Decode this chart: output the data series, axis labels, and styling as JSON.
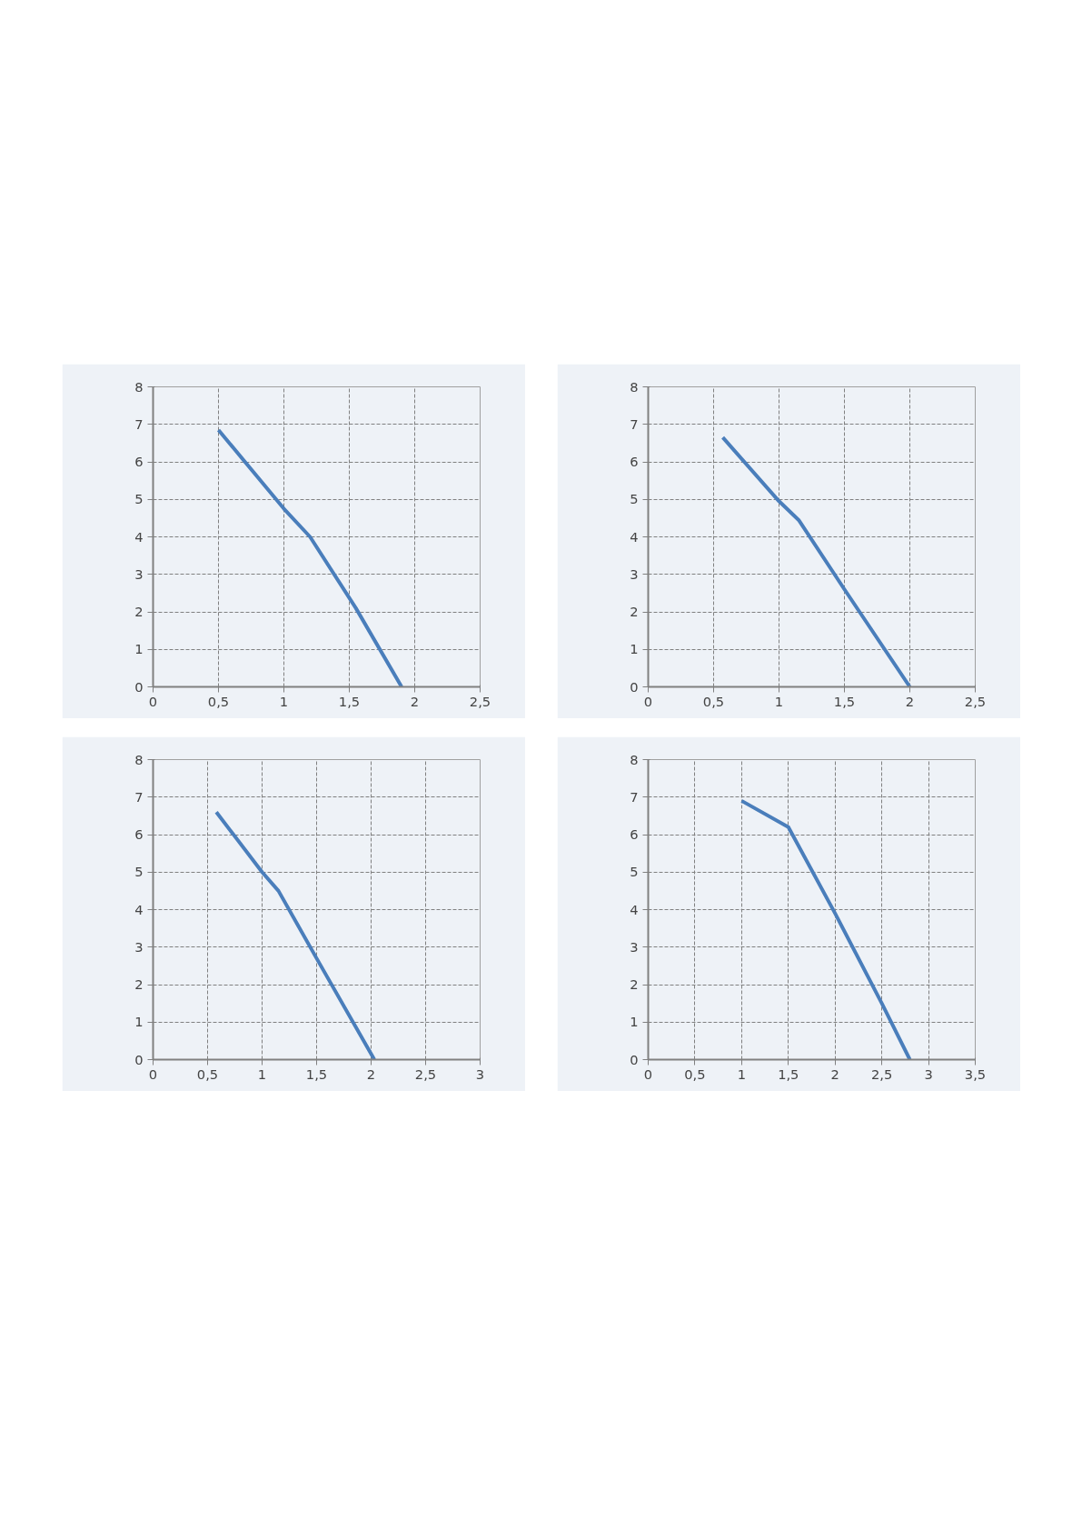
{
  "chart_data": [
    {
      "type": "line",
      "x": [
        0.5,
        1.0,
        1.2,
        1.55,
        1.9
      ],
      "series": [
        {
          "color": "#4a7ebb",
          "values": [
            6.85,
            4.75,
            4.0,
            2.1,
            0
          ]
        }
      ],
      "xlim": [
        0,
        2.5
      ],
      "ylim": [
        0,
        8
      ],
      "xticks": [
        0,
        {
          "value": 0.5,
          "label": "0,5"
        },
        1,
        {
          "value": 1.5,
          "label": "1,5"
        },
        2,
        {
          "value": 2.5,
          "label": "2,5"
        }
      ],
      "yticks": [
        0,
        1,
        2,
        3,
        4,
        5,
        6,
        7,
        8
      ],
      "grid": true
    },
    {
      "type": "line",
      "x": [
        0.57,
        1.0,
        1.15,
        1.5,
        2.0
      ],
      "series": [
        {
          "color": "#4a7ebb",
          "values": [
            6.65,
            4.95,
            4.45,
            2.6,
            0
          ]
        }
      ],
      "xlim": [
        0,
        2.5
      ],
      "ylim": [
        0,
        8
      ],
      "xticks": [
        0,
        {
          "value": 0.5,
          "label": "0,5"
        },
        1,
        {
          "value": 1.5,
          "label": "1,5"
        },
        2,
        {
          "value": 2.5,
          "label": "2,5"
        }
      ],
      "yticks": [
        0,
        1,
        2,
        3,
        4,
        5,
        6,
        7,
        8
      ],
      "grid": true
    },
    {
      "type": "line",
      "x": [
        0.58,
        1.0,
        1.15,
        1.5,
        2.03
      ],
      "series": [
        {
          "color": "#4a7ebb",
          "values": [
            6.6,
            5.0,
            4.5,
            2.7,
            0
          ]
        }
      ],
      "xlim": [
        0,
        3
      ],
      "ylim": [
        0,
        8
      ],
      "xticks": [
        0,
        {
          "value": 0.5,
          "label": "0,5"
        },
        1,
        {
          "value": 1.5,
          "label": "1,5"
        },
        2,
        {
          "value": 2.5,
          "label": "2,5"
        },
        3
      ],
      "yticks": [
        0,
        1,
        2,
        3,
        4,
        5,
        6,
        7,
        8
      ],
      "grid": true
    },
    {
      "type": "line",
      "x": [
        1.0,
        1.5,
        2.0,
        2.5,
        2.8
      ],
      "series": [
        {
          "color": "#4a7ebb",
          "values": [
            6.9,
            6.2,
            3.9,
            1.5,
            0
          ]
        }
      ],
      "xlim": [
        0,
        3.5
      ],
      "ylim": [
        0,
        8
      ],
      "xticks": [
        0,
        {
          "value": 0.5,
          "label": "0,5"
        },
        1,
        {
          "value": 1.5,
          "label": "1,5"
        },
        2,
        {
          "value": 2.5,
          "label": "2,5"
        },
        3,
        {
          "value": 3.5,
          "label": "3,5"
        }
      ],
      "yticks": [
        0,
        1,
        2,
        3,
        4,
        5,
        6,
        7,
        8
      ],
      "grid": true
    }
  ]
}
